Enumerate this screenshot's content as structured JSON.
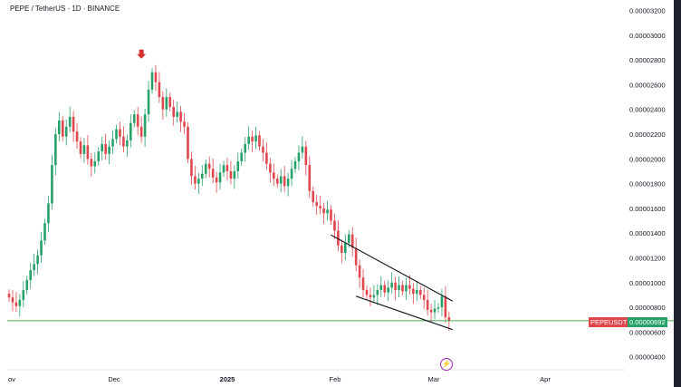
{
  "header": {
    "title": "PEPE / TetherUS · 1D · BINANCE"
  },
  "colors": {
    "up": "#26a269",
    "down": "#e0474c",
    "level": "#4caf50",
    "arrow": "#d32f2f",
    "wedge": "#131722",
    "accent": "#9c27b0"
  },
  "badge": {
    "symbol": "PEPEUSDT",
    "price": "0.00000692"
  },
  "icons": {
    "bolt": "⚡"
  },
  "chart_data": {
    "type": "candlestick",
    "title": "PEPE / TetherUS · 1D · BINANCE",
    "x_labels": [
      "ov",
      "Dec",
      "2025",
      "Feb",
      "Mar",
      "Apr"
    ],
    "y_ticks": [
      "0.00003200",
      "0.00003000",
      "0.00002800",
      "0.00002600",
      "0.00002400",
      "0.00002200",
      "0.00002000",
      "0.00001800",
      "0.00001600",
      "0.00001400",
      "0.00001200",
      "0.00001000",
      "0.00000800",
      "0.00000600",
      "0.00000400"
    ],
    "ylim": [
      4e-06,
      3.2e-05
    ],
    "horizontal_level": 6.92e-06,
    "wedge_upper": [
      [
        1.385e-05,
        8.5e-06
      ]
    ],
    "wedge_lower": [
      [
        8.9e-06,
        6.2e-06
      ]
    ],
    "candles_close": [
      8.8,
      8.4,
      8.1,
      8.6,
      9.4,
      10.2,
      11.0,
      11.5,
      12.2,
      13.4,
      14.8,
      16.4,
      19.5,
      22.0,
      23.1,
      21.8,
      22.6,
      23.4,
      22.2,
      21.4,
      20.4,
      21.1,
      20.0,
      19.4,
      19.8,
      20.6,
      21.2,
      20.4,
      21.0,
      21.6,
      22.4,
      21.8,
      21.0,
      21.5,
      22.9,
      23.6,
      22.6,
      21.8,
      23.6,
      25.6,
      27.0,
      26.2,
      25.0,
      24.0,
      25.0,
      24.2,
      23.4,
      23.8,
      23.0,
      22.6,
      20.0,
      18.6,
      18.0,
      18.4,
      18.8,
      19.6,
      19.2,
      18.5,
      18.1,
      18.9,
      19.5,
      19.0,
      18.4,
      19.0,
      19.8,
      20.5,
      21.2,
      21.8,
      21.4,
      21.9,
      21.0,
      20.5,
      19.6,
      18.9,
      18.4,
      18.0,
      18.6,
      17.8,
      18.4,
      19.2,
      19.8,
      20.5,
      21.0,
      19.5,
      17.4,
      16.5,
      16.2,
      16.0,
      15.6,
      15.9,
      15.0,
      14.2,
      13.0,
      12.4,
      13.2,
      13.9,
      12.8,
      11.4,
      10.4,
      9.4,
      9.0,
      8.8,
      9.0,
      9.4,
      9.8,
      9.2,
      9.6,
      10.0,
      9.4,
      9.8,
      9.3,
      9.8,
      9.5,
      9.1,
      9.4,
      9.0,
      8.6,
      7.8,
      7.6,
      7.9,
      8.0,
      8.9,
      7.2,
      6.92
    ]
  }
}
